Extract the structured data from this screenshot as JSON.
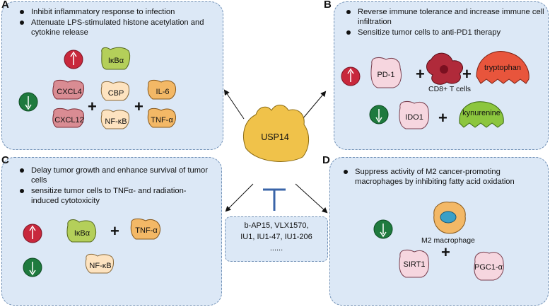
{
  "panels": {
    "a": {
      "label": "A",
      "bullets": [
        "Inhibit inflammatory response to infection",
        "Attenuate LPS-stimulated histone acetylation and cytokine release"
      ],
      "up": [
        "IκBα"
      ],
      "down": [
        "CXCL4",
        "CXCL12",
        "CBP",
        "NF-κB",
        "IL-6",
        "TNF-α"
      ]
    },
    "b": {
      "label": "B",
      "bullets": [
        "Reverse immune tolerance and increase immune cell infiltration",
        "Sensitize tumor cells to anti-PD1 therapy"
      ],
      "up": [
        "PD-1",
        "CD8+ T cells",
        "tryptophan"
      ],
      "down": [
        "IDO1",
        "kynurenine"
      ]
    },
    "c": {
      "label": "C",
      "bullets": [
        "Delay tumor growth and enhance survival of tumor cells",
        "sensitize tumor cells to TNFα- and radiation-induced cytotoxicity"
      ],
      "up": [
        "IκBα",
        "TNF-α"
      ],
      "down": [
        "NF-κB"
      ]
    },
    "d": {
      "label": "D",
      "bullets": [
        "Suppress activity of M2 cancer-promoting macrophages by inhibiting fatty acid oxidation"
      ],
      "down": [
        "M2 macrophage",
        "SIRT1",
        "PGC1-α"
      ]
    }
  },
  "center": {
    "protein": "USP14",
    "inhibitors": [
      "b-AP15, VLX1570,",
      "IU1, IU1-47, IU1-206",
      "......"
    ]
  },
  "colors": {
    "panel_bg": "#dce8f6",
    "panel_border": "#6f8fb5",
    "up_circle": "#c8283c",
    "down_circle": "#1f7a3e",
    "inhibitor_bar": "#3a64a8",
    "usp14": "#f0c24a"
  }
}
